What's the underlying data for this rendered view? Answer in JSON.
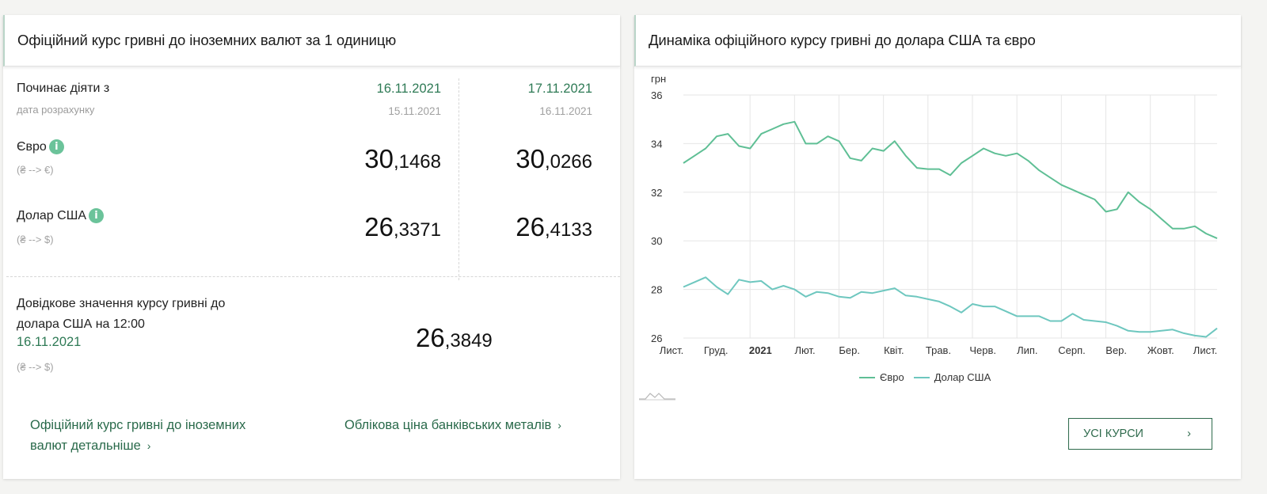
{
  "left_panel": {
    "title": "Офіційний курс гривні до іноземних валют за 1 одиницю",
    "effective_label": "Починає діяти з",
    "calc_date_label": "дата розрахунку",
    "columns": [
      {
        "effective_date": "16.11.2021",
        "calc_date": "15.11.2021"
      },
      {
        "effective_date": "17.11.2021",
        "calc_date": "16.11.2021"
      }
    ],
    "currencies": [
      {
        "name": "Євро",
        "conversion": "(₴ --> €)",
        "info_icon": "info-icon",
        "rates": [
          {
            "int": "30",
            "dec": ",1468"
          },
          {
            "int": "30",
            "dec": ",0266"
          }
        ]
      },
      {
        "name": "Долар США",
        "conversion": "(₴ --> $)",
        "info_icon": "info-icon",
        "rates": [
          {
            "int": "26",
            "dec": ",3371"
          },
          {
            "int": "26",
            "dec": ",4133"
          }
        ]
      }
    ],
    "reference": {
      "label_line1": "Довідкове значення курсу гривні до",
      "label_line2": "долара США на 12:00",
      "date": "16.11.2021",
      "conversion": "(₴ --> $)",
      "rate_int": "26",
      "rate_dec": ",3849"
    },
    "links": {
      "detail_line1": "Офіційний курс гривні до іноземних",
      "detail_line2": "валют детальніше",
      "metals": "Облікова ціна банківських металів",
      "chevron": "›"
    }
  },
  "right_panel": {
    "title": "Динаміка офіційного курсу гривні до долара США та євро",
    "all_rates_button": "УСІ КУРСИ",
    "button_chevron": "›",
    "minimap_icon": "chart-navigator-icon"
  },
  "colors": {
    "accent_green": "#2e7a55",
    "link_green": "#2a6a4b",
    "info_icon": "#6bc39a",
    "euro_line": "#5fbf95",
    "usd_line": "#6ec7bf",
    "grid": "#e6e6e6"
  },
  "chart_data": {
    "type": "line",
    "title": "Динаміка офіційного курсу гривні до долара США та євро",
    "ylabel": "грн",
    "xlabel": "",
    "ylim": [
      26,
      36
    ],
    "yticks": [
      26,
      28,
      30,
      32,
      34,
      36
    ],
    "grid": true,
    "legend_position": "bottom-right",
    "x_tick_labels": [
      "Лист.",
      "Груд.",
      "2021",
      "Лют.",
      "Бер.",
      "Квіт.",
      "Трав.",
      "Черв.",
      "Лип.",
      "Серп.",
      "Вер.",
      "Жовт.",
      "Лист."
    ],
    "x_tick_bold": [
      false,
      false,
      true,
      false,
      false,
      false,
      false,
      false,
      false,
      false,
      false,
      false,
      false
    ],
    "x_range": [
      "2020-11-16",
      "2021-11-16"
    ],
    "x": [
      0,
      0.25,
      0.5,
      0.75,
      1,
      1.25,
      1.5,
      1.75,
      2,
      2.25,
      2.5,
      2.75,
      3,
      3.25,
      3.5,
      3.75,
      4,
      4.25,
      4.5,
      4.75,
      5,
      5.25,
      5.5,
      5.75,
      6,
      6.25,
      6.5,
      6.75,
      7,
      7.25,
      7.5,
      7.75,
      8,
      8.25,
      8.5,
      8.75,
      9,
      9.25,
      9.5,
      9.75,
      10,
      10.25,
      10.5,
      10.75,
      11,
      11.25,
      11.5,
      11.75,
      12
    ],
    "series": [
      {
        "name": "Євро",
        "values": [
          33.2,
          33.5,
          33.8,
          34.3,
          34.4,
          33.9,
          33.8,
          34.4,
          34.6,
          34.8,
          34.9,
          34.0,
          34.0,
          34.3,
          34.1,
          33.4,
          33.3,
          33.8,
          33.7,
          34.1,
          33.5,
          33.0,
          32.95,
          32.95,
          32.7,
          33.2,
          33.5,
          33.8,
          33.6,
          33.5,
          33.6,
          33.3,
          32.9,
          32.6,
          32.3,
          32.1,
          31.9,
          31.7,
          31.2,
          31.3,
          32.0,
          31.6,
          31.3,
          30.9,
          30.5,
          30.5,
          30.6,
          30.3,
          30.1
        ]
      },
      {
        "name": "Долар США",
        "values": [
          28.1,
          28.3,
          28.5,
          28.1,
          27.8,
          28.4,
          28.3,
          28.35,
          28.0,
          28.15,
          28.0,
          27.7,
          27.9,
          27.85,
          27.7,
          27.65,
          27.9,
          27.85,
          27.95,
          28.05,
          27.75,
          27.7,
          27.6,
          27.5,
          27.3,
          27.05,
          27.4,
          27.3,
          27.3,
          27.1,
          26.9,
          26.9,
          26.9,
          26.7,
          26.7,
          27.0,
          26.75,
          26.7,
          26.65,
          26.5,
          26.3,
          26.25,
          26.25,
          26.3,
          26.35,
          26.2,
          26.1,
          26.05,
          26.4
        ]
      }
    ]
  }
}
